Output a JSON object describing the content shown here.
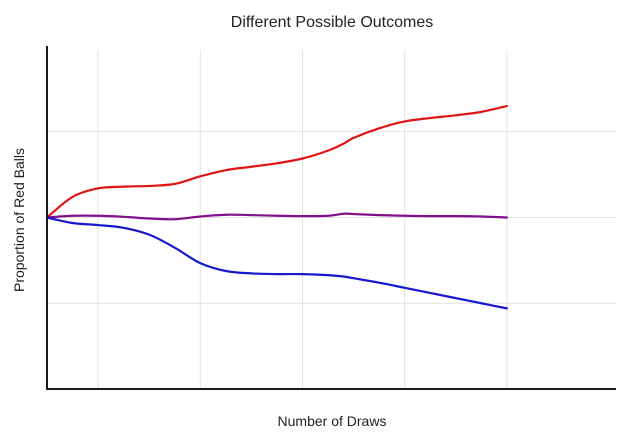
{
  "chart_data": {
    "type": "line",
    "title": "Different Possible Outcomes",
    "xlabel": "Number of Draws",
    "ylabel": "Proportion of Red Balls",
    "xlim": [
      0,
      100
    ],
    "ylim": [
      0,
      1
    ],
    "xticks": [
      10,
      30,
      50,
      70,
      90
    ],
    "yticks": [
      0.25,
      0.5,
      0.75
    ],
    "tick_labels_shown": false,
    "grid": true,
    "legend": "none",
    "x": [
      0,
      5,
      10,
      15,
      20,
      25,
      30,
      35,
      40,
      45,
      50,
      55,
      58,
      60,
      65,
      70,
      75,
      80,
      85,
      90
    ],
    "series": [
      {
        "color": "#e01414",
        "values": [
          0.5,
          0.56,
          0.585,
          0.59,
          0.592,
          0.598,
          0.62,
          0.638,
          0.648,
          0.658,
          0.672,
          0.695,
          0.715,
          0.732,
          0.76,
          0.78,
          0.79,
          0.798,
          0.808,
          0.825
        ]
      },
      {
        "color": "#80108c",
        "values": [
          0.5,
          0.505,
          0.505,
          0.502,
          0.497,
          0.495,
          0.503,
          0.508,
          0.507,
          0.505,
          0.504,
          0.505,
          0.511,
          0.51,
          0.507,
          0.505,
          0.504,
          0.504,
          0.503,
          0.5
        ]
      },
      {
        "color": "#1818cc",
        "values": [
          0.5,
          0.484,
          0.478,
          0.47,
          0.45,
          0.412,
          0.367,
          0.344,
          0.337,
          0.335,
          0.335,
          0.332,
          0.328,
          0.323,
          0.31,
          0.295,
          0.28,
          0.265,
          0.25,
          0.235
        ]
      }
    ]
  }
}
